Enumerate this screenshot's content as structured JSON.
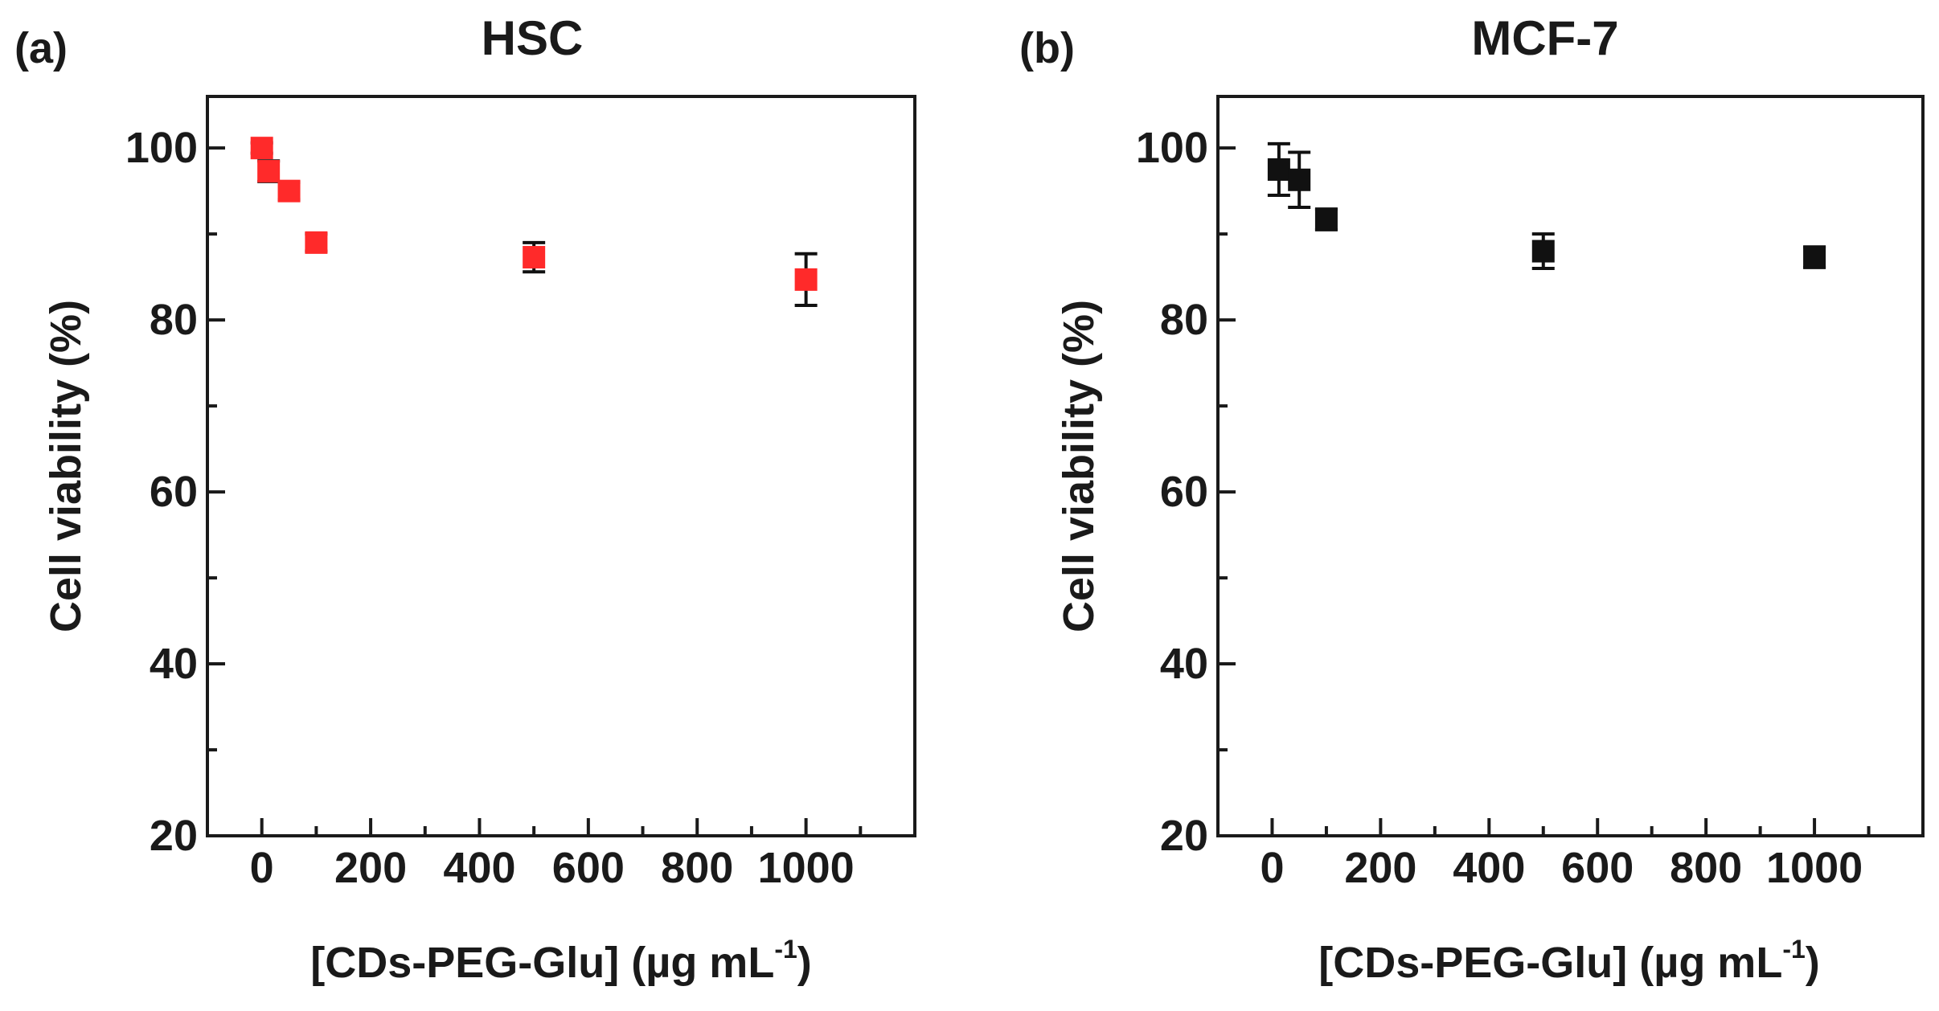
{
  "chart_data": [
    {
      "panel": "(a)",
      "title": "HSC",
      "type": "scatter",
      "xlabel": "[CDs-PEG-Glu] (µg mL",
      "xlabel_sup": "-1",
      "xlabel_end": ")",
      "ylabel": "Cell viability (%)",
      "xlim": [
        -100,
        1200
      ],
      "ylim": [
        20,
        106
      ],
      "x_ticks": [
        0,
        200,
        400,
        600,
        800,
        1000
      ],
      "y_ticks": [
        20,
        40,
        60,
        80,
        100
      ],
      "x_tick_labels": [
        "0",
        "200",
        "400",
        "600",
        "800",
        "1000"
      ],
      "y_tick_labels": [
        "20",
        "40",
        "60",
        "80",
        "100"
      ],
      "series": [
        {
          "name": "HSC",
          "color": "#ff2a2a",
          "points": [
            {
              "x": 0,
              "y": 100.0,
              "err": 0.6
            },
            {
              "x": 12.5,
              "y": 97.3,
              "err": 1.2
            },
            {
              "x": 50,
              "y": 95.0,
              "err": 1.0
            },
            {
              "x": 100,
              "y": 89.0,
              "err": 1.0
            },
            {
              "x": 500,
              "y": 87.3,
              "err": 1.7
            },
            {
              "x": 1000,
              "y": 84.7,
              "err": 3.0
            }
          ]
        }
      ]
    },
    {
      "panel": "(b)",
      "title": "MCF-7",
      "type": "scatter",
      "xlabel": "[CDs-PEG-Glu] (µg mL",
      "xlabel_sup": "-1",
      "xlabel_end": ")",
      "ylabel": "Cell viability (%)",
      "xlim": [
        -100,
        1200
      ],
      "ylim": [
        20,
        106
      ],
      "x_ticks": [
        0,
        200,
        400,
        600,
        800,
        1000
      ],
      "y_ticks": [
        20,
        40,
        60,
        80,
        100
      ],
      "x_tick_labels": [
        "0",
        "200",
        "400",
        "600",
        "800",
        "1000"
      ],
      "y_tick_labels": [
        "20",
        "40",
        "60",
        "80",
        "100"
      ],
      "series": [
        {
          "name": "MCF-7",
          "color": "#111111",
          "points": [
            {
              "x": 12.5,
              "y": 97.5,
              "err": 3.0
            },
            {
              "x": 50,
              "y": 96.3,
              "err": 3.2
            },
            {
              "x": 100,
              "y": 91.7,
              "err": 1.2
            },
            {
              "x": 500,
              "y": 88.0,
              "err": 2.0
            },
            {
              "x": 1000,
              "y": 87.3,
              "err": 1.2
            }
          ]
        }
      ]
    }
  ]
}
